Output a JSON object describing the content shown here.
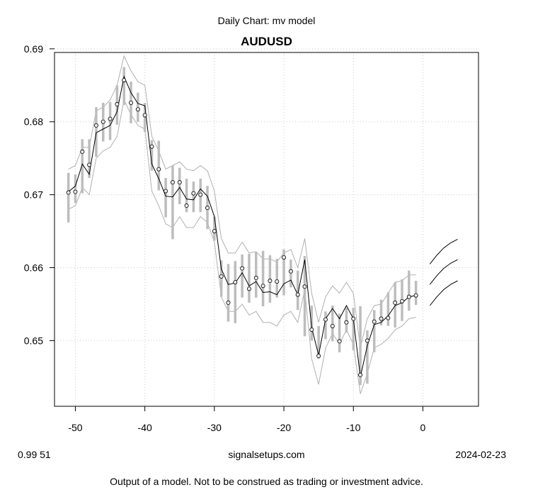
{
  "header": {
    "subtitle": "Daily Chart: mv model",
    "title": "AUDUSD"
  },
  "footer": {
    "left": "0.99 51",
    "center": "signalsetups.com",
    "right": "2024-02-23",
    "disclaimer": "Output of a model.  Not to be construed as trading or investment advice."
  },
  "chart_data": {
    "type": "line",
    "title": "AUDUSD",
    "subtitle": "Daily Chart: mv model",
    "xlim": [
      -53,
      8
    ],
    "ylim": [
      0.641,
      0.6895
    ],
    "x_ticks": [
      -50,
      -40,
      -30,
      -20,
      -10,
      0
    ],
    "y_ticks": [
      0.65,
      0.66,
      0.67,
      0.68,
      0.69
    ],
    "x_tick_labels": [
      "-50",
      "-40",
      "-30",
      "-20",
      "-10",
      "0"
    ],
    "y_tick_labels": [
      "0.65",
      "0.66",
      "0.67",
      "0.68",
      "0.69"
    ],
    "grid": true,
    "colors": {
      "line": "#000000",
      "band": "#b0b0b0",
      "range_bar": "#bdbdbd",
      "point_edge": "#000000",
      "grid": "#cccccc"
    },
    "x": [
      -51,
      -50,
      -49,
      -48,
      -47,
      -46,
      -45,
      -44,
      -43,
      -42,
      -41,
      -40,
      -39,
      -38,
      -37,
      -36,
      -35,
      -34,
      -33,
      -32,
      -31,
      -30,
      -29,
      -28,
      -27,
      -26,
      -25,
      -24,
      -23,
      -22,
      -21,
      -20,
      -19,
      -18,
      -17,
      -16,
      -15,
      -14,
      -13,
      -12,
      -11,
      -10,
      -9,
      -8,
      -7,
      -6,
      -5,
      -4,
      -3,
      -2,
      -1
    ],
    "close": [
      0.6703,
      0.6704,
      0.6759,
      0.6741,
      0.6795,
      0.68,
      0.6804,
      0.6824,
      0.6857,
      0.6826,
      0.6817,
      0.6809,
      0.6766,
      0.6735,
      0.6705,
      0.6717,
      0.6717,
      0.6685,
      0.6702,
      0.67,
      0.6682,
      0.665,
      0.6588,
      0.6552,
      0.658,
      0.6599,
      0.6571,
      0.6586,
      0.6575,
      0.6582,
      0.6581,
      0.6614,
      0.6595,
      0.6563,
      0.6574,
      0.6515,
      0.6479,
      0.6529,
      0.652,
      0.6499,
      0.6525,
      0.653,
      0.6453,
      0.65,
      0.6526,
      0.653,
      0.6531,
      0.6552,
      0.6554,
      0.656,
      0.6562
    ],
    "range_high": [
      0.673,
      0.6728,
      0.6776,
      0.6776,
      0.682,
      0.6826,
      0.6827,
      0.685,
      0.6875,
      0.6855,
      0.684,
      0.6826,
      0.6775,
      0.6774,
      0.6723,
      0.674,
      0.6737,
      0.6722,
      0.6718,
      0.6722,
      0.6712,
      0.667,
      0.661,
      0.6605,
      0.6609,
      0.6618,
      0.6619,
      0.6621,
      0.6623,
      0.6617,
      0.6612,
      0.6625,
      0.6611,
      0.6596,
      0.6616,
      0.6548,
      0.652,
      0.654,
      0.6548,
      0.6537,
      0.6545,
      0.6545,
      0.6547,
      0.6514,
      0.6542,
      0.6556,
      0.6566,
      0.658,
      0.6584,
      0.6596,
      0.6582
    ],
    "range_low": [
      0.6662,
      0.6689,
      0.6702,
      0.6723,
      0.6752,
      0.6773,
      0.6775,
      0.6796,
      0.6823,
      0.6798,
      0.68,
      0.6786,
      0.6733,
      0.6706,
      0.6669,
      0.6639,
      0.6687,
      0.6676,
      0.6676,
      0.6676,
      0.6653,
      0.6637,
      0.656,
      0.6526,
      0.6524,
      0.6559,
      0.6552,
      0.6559,
      0.6547,
      0.6552,
      0.6559,
      0.6562,
      0.6573,
      0.6542,
      0.6506,
      0.65,
      0.6475,
      0.6502,
      0.6499,
      0.6484,
      0.6511,
      0.6487,
      0.6439,
      0.6441,
      0.6484,
      0.6521,
      0.652,
      0.6518,
      0.6527,
      0.6541,
      0.6549
    ],
    "model_line": [
      0.6704,
      0.6712,
      0.6742,
      0.6728,
      0.6785,
      0.679,
      0.6795,
      0.6814,
      0.6862,
      0.684,
      0.6825,
      0.6822,
      0.6742,
      0.6722,
      0.6698,
      0.6697,
      0.671,
      0.6694,
      0.6693,
      0.6708,
      0.6698,
      0.667,
      0.6598,
      0.6577,
      0.6579,
      0.6593,
      0.6575,
      0.6581,
      0.6566,
      0.6567,
      0.6563,
      0.6578,
      0.6583,
      0.6563,
      0.6611,
      0.6518,
      0.648,
      0.653,
      0.6544,
      0.653,
      0.6548,
      0.653,
      0.645,
      0.6493,
      0.6522,
      0.6525,
      0.6534,
      0.6548,
      0.6552,
      0.656,
      0.6562
    ],
    "band_upper": [
      0.6735,
      0.674,
      0.6765,
      0.6765,
      0.6815,
      0.682,
      0.683,
      0.685,
      0.689,
      0.687,
      0.6855,
      0.685,
      0.678,
      0.676,
      0.6735,
      0.674,
      0.6745,
      0.6735,
      0.6733,
      0.674,
      0.6733,
      0.6705,
      0.664,
      0.662,
      0.662,
      0.6635,
      0.662,
      0.6622,
      0.6612,
      0.6612,
      0.6608,
      0.662,
      0.6625,
      0.66,
      0.664,
      0.6565,
      0.6525,
      0.656,
      0.6575,
      0.6565,
      0.658,
      0.6565,
      0.649,
      0.653,
      0.6548,
      0.655,
      0.6565,
      0.658,
      0.6582,
      0.659,
      0.659
    ],
    "band_lower": [
      0.668,
      0.6685,
      0.671,
      0.67,
      0.675,
      0.676,
      0.6765,
      0.678,
      0.683,
      0.681,
      0.6795,
      0.679,
      0.6705,
      0.6685,
      0.666,
      0.6655,
      0.667,
      0.6655,
      0.6655,
      0.667,
      0.6662,
      0.6635,
      0.656,
      0.654,
      0.654,
      0.655,
      0.6535,
      0.654,
      0.6525,
      0.6525,
      0.652,
      0.6535,
      0.654,
      0.6525,
      0.657,
      0.6475,
      0.644,
      0.649,
      0.651,
      0.6495,
      0.6515,
      0.6495,
      0.6427,
      0.6455,
      0.649,
      0.6495,
      0.6503,
      0.6515,
      0.652,
      0.653,
      0.6532
    ],
    "forecast": [
      {
        "x": [
          1,
          2,
          3,
          4,
          5
        ],
        "y": [
          0.6605,
          0.6617,
          0.6627,
          0.6634,
          0.6639
        ]
      },
      {
        "x": [
          1,
          2,
          3,
          4,
          5
        ],
        "y": [
          0.6577,
          0.6589,
          0.6599,
          0.6606,
          0.6611
        ]
      },
      {
        "x": [
          1,
          2,
          3,
          4,
          5
        ],
        "y": [
          0.6548,
          0.656,
          0.657,
          0.6577,
          0.6582
        ]
      }
    ]
  }
}
